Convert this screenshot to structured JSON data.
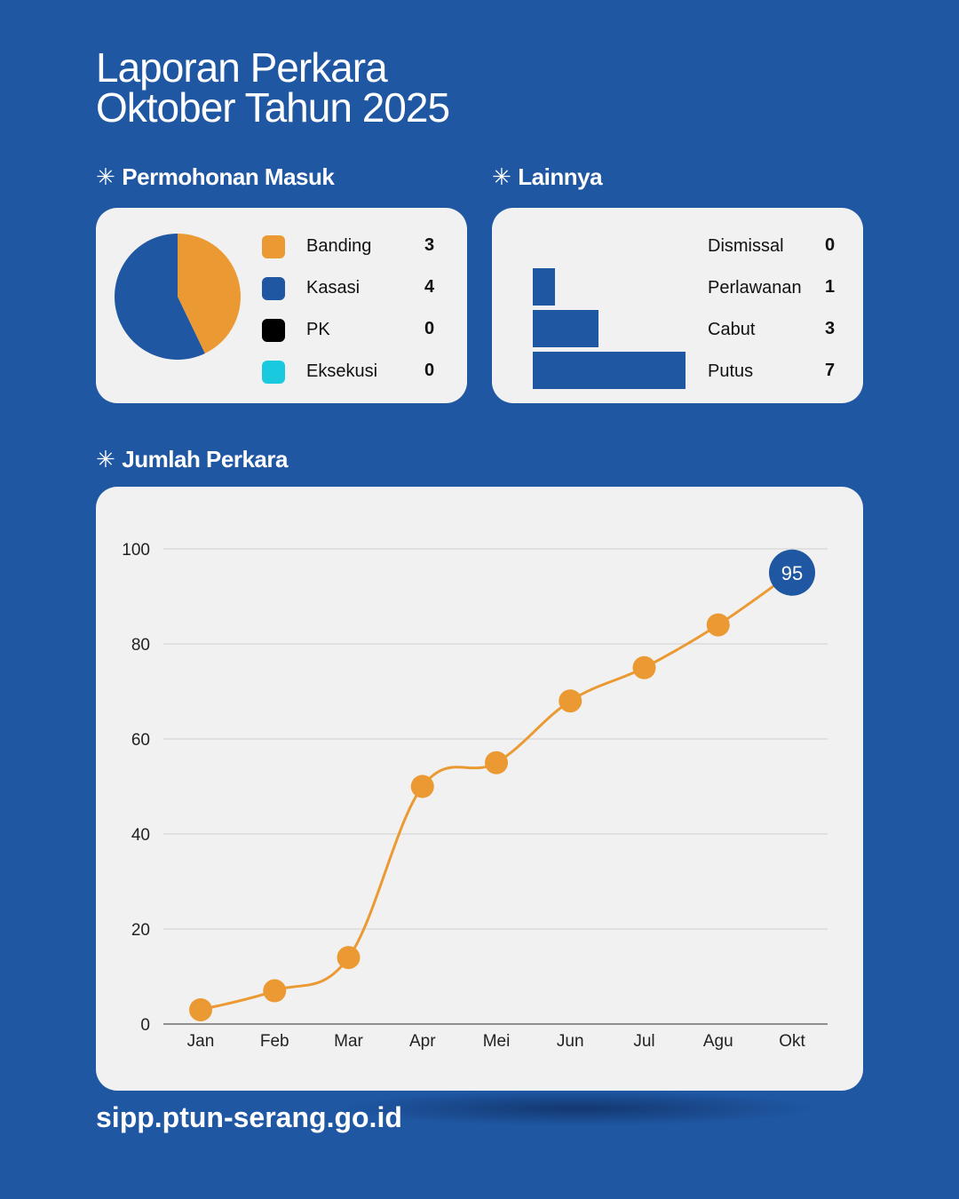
{
  "title": {
    "line1": "Laporan Perkara",
    "line2": "Oktober Tahun 2025"
  },
  "sections": {
    "permohonan": "Permohonan Masuk",
    "lainnya": "Lainnya",
    "jumlah": "Jumlah Perkara"
  },
  "star_glyph": "✳",
  "footer": "sipp.ptun-serang.go.id",
  "colors": {
    "background": "#1f57a3",
    "card": "#f1f1f1",
    "orange": "#eb9a33",
    "blue": "#1f57a3",
    "black": "#000000",
    "cyan": "#19c9de"
  },
  "chart_data": [
    {
      "type": "pie",
      "legend": [
        "Banding",
        "Kasasi",
        "PK",
        "Eksekusi"
      ],
      "values": [
        3,
        4,
        0,
        0
      ],
      "colors": [
        "#eb9a33",
        "#1f57a3",
        "#000000",
        "#19c9de"
      ]
    },
    {
      "type": "bar",
      "orientation": "horizontal",
      "categories": [
        "Dismissal",
        "Perlawanan",
        "Cabut",
        "Putus"
      ],
      "values": [
        0,
        1,
        3,
        7
      ],
      "color": "#1f57a3"
    },
    {
      "type": "line",
      "categories": [
        "Jan",
        "Feb",
        "Mar",
        "Apr",
        "Mei",
        "Jun",
        "Jul",
        "Agu",
        "Okt"
      ],
      "values": [
        3,
        7,
        14,
        50,
        55,
        68,
        75,
        84,
        95
      ],
      "ylim": [
        0,
        100
      ],
      "yticks": [
        "0",
        "20",
        "40",
        "60",
        "80",
        "100"
      ],
      "highlight_label": "95",
      "grid": true,
      "line_color": "#eb9a33",
      "highlight_color": "#1f57a3"
    }
  ]
}
